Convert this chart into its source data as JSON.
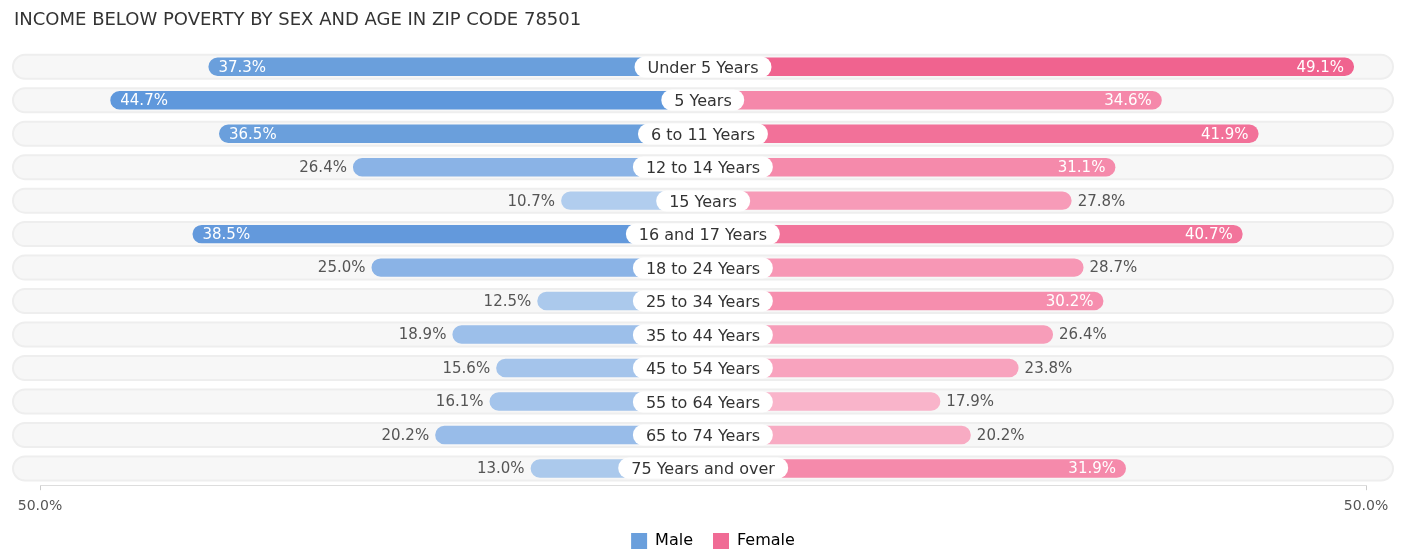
{
  "chart_data": [
    {
      "type": "bar",
      "orientation": "horizontal",
      "title": "INCOME BELOW POVERTY BY SEX AND AGE IN ZIP CODE 78501",
      "categories": [
        "Under 5 Years",
        "5 Years",
        "6 to 11 Years",
        "12 to 14 Years",
        "15 Years",
        "16 and 17 Years",
        "18 to 24 Years",
        "25 to 34 Years",
        "35 to 44 Years",
        "45 to 54 Years",
        "55 to 64 Years",
        "65 to 74 Years",
        "75 Years and over"
      ],
      "series": [
        {
          "name": "Male",
          "color": "#6a9fdc",
          "values": [
            37.3,
            44.7,
            36.5,
            26.4,
            10.7,
            38.5,
            25.0,
            12.5,
            18.9,
            15.6,
            16.1,
            20.2,
            13.0
          ],
          "value_labels": [
            "37.3%",
            "44.7%",
            "36.5%",
            "26.4%",
            "10.7%",
            "38.5%",
            "25.0%",
            "12.5%",
            "18.9%",
            "15.6%",
            "16.1%",
            "20.2%",
            "13.0%"
          ],
          "colors": [
            "#6a9fdc",
            "#5f98dc",
            "#6a9fdc",
            "#8ab3e6",
            "#b1cdee",
            "#6399dc",
            "#8ab3e6",
            "#abc9ec",
            "#9cbfea",
            "#a4c4eb",
            "#a4c4eb",
            "#98bce9",
            "#abc9ec"
          ]
        }
      ],
      "xlim": [
        50,
        0
      ],
      "xticks": [
        {
          "value": 50,
          "label": "50.0%"
        }
      ],
      "tick_labels": "x",
      "legend": "bottom"
    },
    {
      "type": "bar",
      "orientation": "horizontal",
      "categories": [
        null,
        null,
        null,
        null,
        null,
        null,
        null,
        null,
        null,
        null,
        null,
        null,
        null
      ],
      "series": [
        {
          "name": "Female",
          "color": "#f06b95",
          "values": [
            49.1,
            34.6,
            41.9,
            31.1,
            27.8,
            40.7,
            28.7,
            30.2,
            26.4,
            23.8,
            17.9,
            20.2,
            31.9
          ],
          "value_labels": [
            "49.1%",
            "34.6%",
            "41.9%",
            "31.1%",
            "27.8%",
            "40.7%",
            "28.7%",
            "30.2%",
            "26.4%",
            "23.8%",
            "17.9%",
            "20.2%",
            "31.9%"
          ],
          "colors": [
            "#f0638f",
            "#f588aa",
            "#f27199",
            "#f58aab",
            "#f79bb8",
            "#f2749b",
            "#f797b5",
            "#f68eae",
            "#f79db9",
            "#f8a3be",
            "#f9b4ca",
            "#f8abc3",
            "#f58aab"
          ]
        }
      ],
      "xlim": [
        0,
        50
      ],
      "xticks": [
        {
          "value": 50,
          "label": "50.0%"
        }
      ],
      "tick_labels": "x",
      "legend": "bottom"
    }
  ]
}
